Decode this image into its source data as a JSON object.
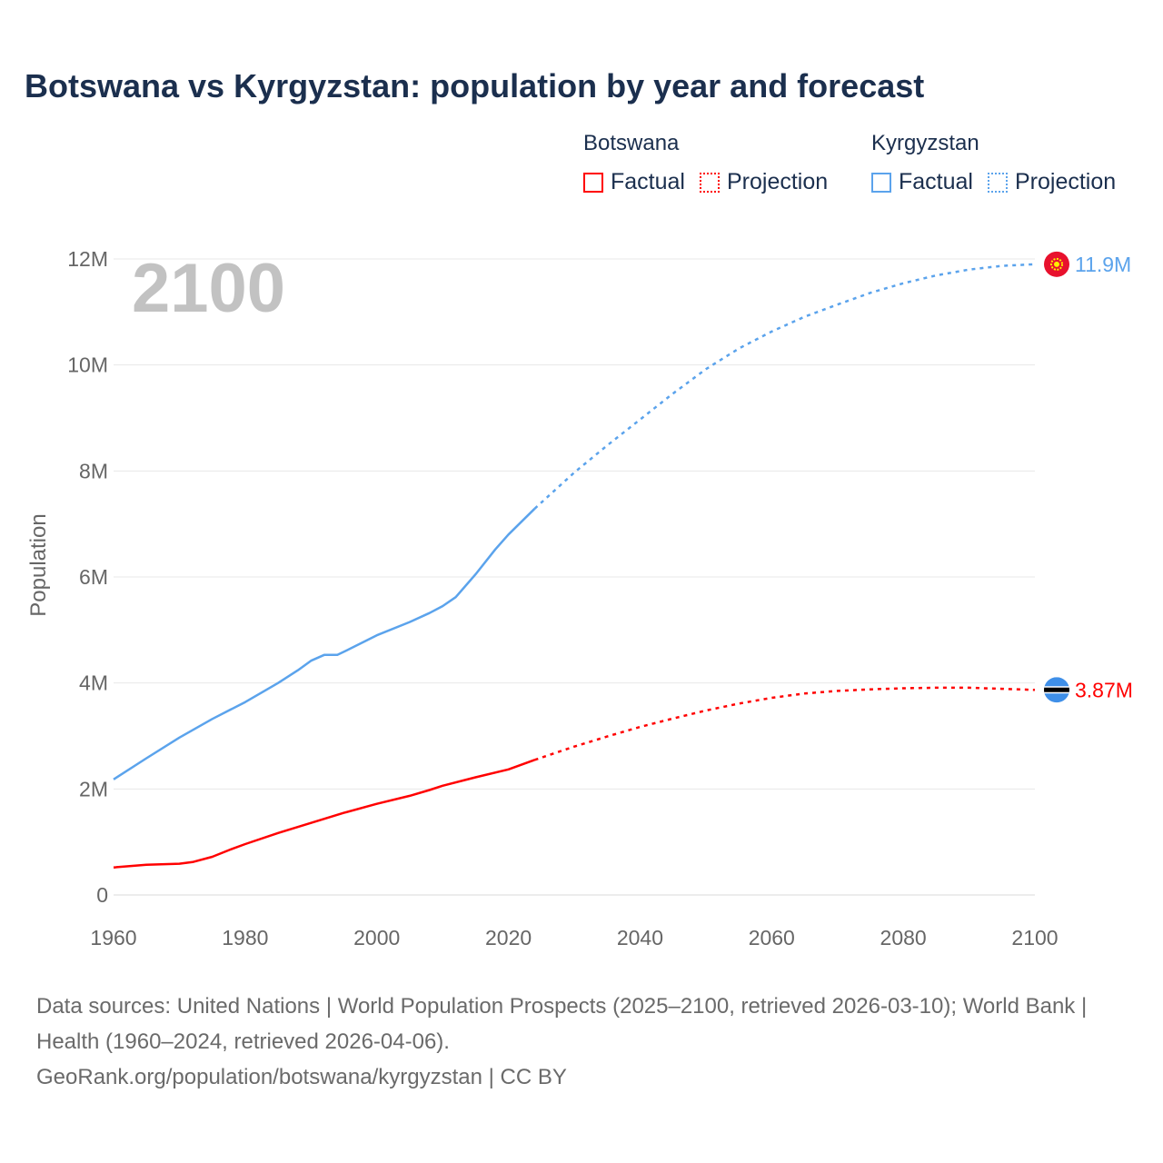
{
  "title": "Botswana vs Kyrgyzstan: population by year and forecast",
  "legend": {
    "groups": [
      {
        "name": "Botswana",
        "color": "#ff0000",
        "factual": "Factual",
        "projection": "Projection"
      },
      {
        "name": "Kyrgyzstan",
        "color": "#5ba3ec",
        "factual": "Factual",
        "projection": "Projection"
      }
    ]
  },
  "footer": {
    "sources": "Data sources: United Nations | World Population Prospects (2025–2100, retrieved 2026-03-10); World Bank | Health (1960–2024, retrieved 2026-04-06).",
    "link": "GeoRank.org/population/botswana/kyrgyzstan | CC BY"
  },
  "chart_data": {
    "type": "line",
    "title": "Botswana vs Kyrgyzstan: population by year and forecast",
    "xlabel": "",
    "ylabel": "Population",
    "xlim": [
      1960,
      2100
    ],
    "ylim": [
      0,
      12000000
    ],
    "x_ticks": [
      "1960",
      "1980",
      "2000",
      "2020",
      "2040",
      "2060",
      "2080",
      "2100"
    ],
    "y_ticks": [
      "0",
      "2M",
      "4M",
      "6M",
      "8M",
      "10M",
      "12M"
    ],
    "year_watermark": "2100",
    "grid": true,
    "series": [
      {
        "name": "Kyrgyzstan",
        "color": "#5ba3ec",
        "end_label": "11.9M",
        "flag": "kyrgyzstan-flag",
        "factual": {
          "x": [
            1960,
            1965,
            1970,
            1975,
            1980,
            1985,
            1988,
            1990,
            1992,
            1994,
            1996,
            2000,
            2005,
            2008,
            2010,
            2012,
            2015,
            2018,
            2020,
            2024
          ],
          "y": [
            2.18,
            2.58,
            2.97,
            3.32,
            3.64,
            4.0,
            4.24,
            4.42,
            4.53,
            4.53,
            4.65,
            4.9,
            5.15,
            5.32,
            5.45,
            5.62,
            6.05,
            6.52,
            6.8,
            7.29
          ]
        },
        "projection": {
          "x": [
            2024,
            2030,
            2035,
            2040,
            2045,
            2050,
            2055,
            2060,
            2065,
            2070,
            2075,
            2080,
            2085,
            2090,
            2095,
            2100
          ],
          "y": [
            7.29,
            7.97,
            8.48,
            8.97,
            9.46,
            9.92,
            10.31,
            10.63,
            10.91,
            11.14,
            11.36,
            11.54,
            11.69,
            11.8,
            11.87,
            11.9
          ]
        }
      },
      {
        "name": "Botswana",
        "color": "#ff0000",
        "end_label": "3.87M",
        "flag": "botswana-flag",
        "factual": {
          "x": [
            1960,
            1965,
            1970,
            1972,
            1975,
            1978,
            1980,
            1985,
            1990,
            1995,
            2000,
            2005,
            2008,
            2010,
            2015,
            2020,
            2024
          ],
          "y": [
            0.52,
            0.57,
            0.59,
            0.62,
            0.72,
            0.87,
            0.96,
            1.17,
            1.36,
            1.55,
            1.72,
            1.87,
            1.98,
            2.06,
            2.22,
            2.37,
            2.55
          ]
        },
        "projection": {
          "x": [
            2024,
            2030,
            2035,
            2040,
            2045,
            2050,
            2055,
            2060,
            2065,
            2070,
            2075,
            2080,
            2085,
            2090,
            2095,
            2100
          ],
          "y": [
            2.55,
            2.8,
            2.99,
            3.17,
            3.33,
            3.48,
            3.61,
            3.72,
            3.8,
            3.85,
            3.88,
            3.9,
            3.91,
            3.91,
            3.89,
            3.87
          ]
        }
      }
    ]
  }
}
